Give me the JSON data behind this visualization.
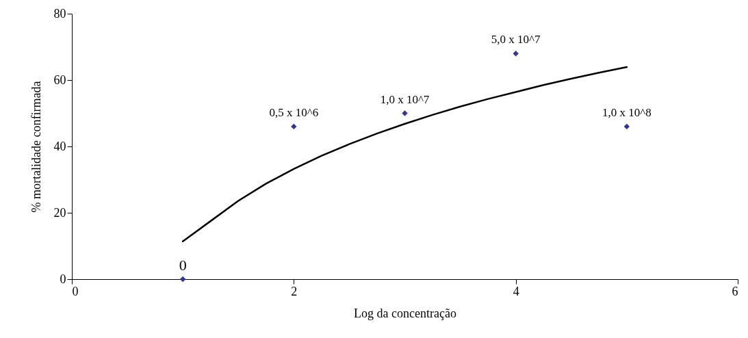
{
  "chart_data": {
    "type": "scatter",
    "xlabel": "Log da concentração",
    "ylabel": "% mortalidade confirmada",
    "x": [
      1,
      2,
      3,
      4,
      5
    ],
    "series": [
      {
        "type": "scatter",
        "color": "#333399",
        "marker": "diamond",
        "values": [
          0,
          46,
          50,
          68,
          46
        ]
      },
      {
        "type": "line",
        "color": "#000000",
        "marker": "none",
        "x": [
          1,
          1.25,
          1.5,
          1.75,
          2,
          2.25,
          2.5,
          2.75,
          3,
          3.25,
          3.5,
          3.75,
          4,
          4.25,
          4.5,
          4.75,
          5
        ],
        "values": [
          11.4,
          17.5,
          23.6,
          28.8,
          33.2,
          37.2,
          40.7,
          43.9,
          46.8,
          49.5,
          52.0,
          54.3,
          56.4,
          58.5,
          60.4,
          62.2,
          63.9
        ]
      }
    ],
    "annotations": [
      {
        "text": "0",
        "x": 1,
        "y": 0
      },
      {
        "text": "0,5 x 10^6",
        "x": 2,
        "y": 46
      },
      {
        "text": "1,0 x 10^7",
        "x": 3,
        "y": 50
      },
      {
        "text": "5,0 x 10^7",
        "x": 4,
        "y": 68
      },
      {
        "text": "1,0 x 10^8",
        "x": 5,
        "y": 46
      }
    ],
    "xlim": [
      0,
      6
    ],
    "xticks": [
      0,
      2,
      4,
      6
    ],
    "ylim": [
      0,
      80
    ],
    "yticks": [
      0,
      20,
      40,
      60,
      80
    ],
    "grid": false,
    "line_style": "solid"
  }
}
